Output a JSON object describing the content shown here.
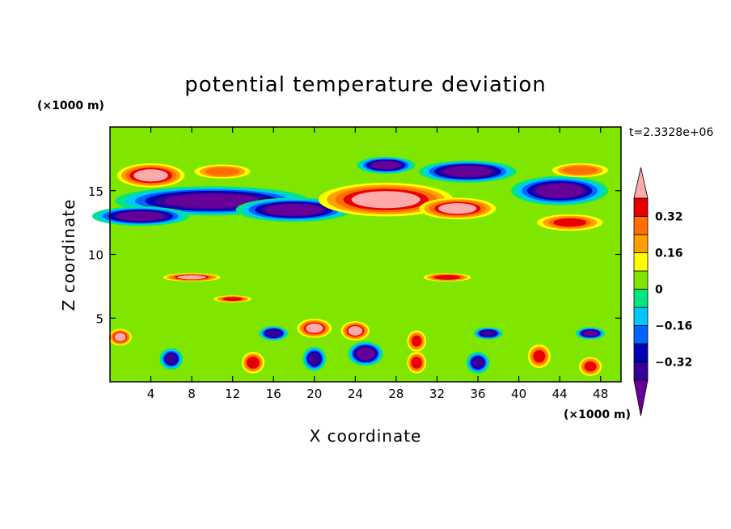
{
  "chart_data": {
    "type": "heatmap",
    "title": "potential temperature deviation",
    "time_label": "t=2.3328e+06",
    "xlabel": "X coordinate",
    "ylabel": "Z coordinate",
    "x_unit": "(×1000 m)",
    "y_unit": "(×1000 m)",
    "xlim": [
      0,
      50
    ],
    "ylim": [
      0,
      20
    ],
    "xticks": [
      4,
      8,
      12,
      16,
      20,
      24,
      28,
      32,
      36,
      40,
      44,
      48
    ],
    "yticks": [
      5,
      10,
      15
    ],
    "colorbar": {
      "levels": [
        -0.4,
        -0.32,
        -0.24,
        -0.16,
        -0.08,
        0,
        0.08,
        0.16,
        0.24,
        0.32,
        0.4
      ],
      "labels": [
        {
          "value": 0.32,
          "text": "0.32"
        },
        {
          "value": 0.16,
          "text": "0.16"
        },
        {
          "value": 0,
          "text": "0"
        },
        {
          "value": -0.16,
          "text": "−0.16"
        },
        {
          "value": -0.32,
          "text": "−0.32"
        }
      ],
      "colors_low_to_high": [
        "#660099",
        "#330099",
        "#0000b4",
        "#0064ff",
        "#00c8ff",
        "#00e680",
        "#80e600",
        "#ffff00",
        "#ffa000",
        "#ff6e00",
        "#e60000",
        "#ffaaaa"
      ],
      "extend": "both"
    },
    "background_value": 0.04,
    "field": [
      {
        "x": 4,
        "z": 16.2,
        "value": 0.45,
        "rx": 3.5,
        "rz": 1.0
      },
      {
        "x": 11,
        "z": 16.5,
        "value": 0.3,
        "rx": 3.0,
        "rz": 0.6
      },
      {
        "x": 10,
        "z": 14.2,
        "value": -0.45,
        "rx": 10.0,
        "rz": 1.2
      },
      {
        "x": 3,
        "z": 13.0,
        "value": -0.42,
        "rx": 5.0,
        "rz": 0.8
      },
      {
        "x": 18,
        "z": 13.5,
        "value": -0.42,
        "rx": 6.0,
        "rz": 1.0
      },
      {
        "x": 27,
        "z": 14.3,
        "value": 0.45,
        "rx": 7.0,
        "rz": 1.4
      },
      {
        "x": 34,
        "z": 13.6,
        "value": 0.42,
        "rx": 4.0,
        "rz": 0.9
      },
      {
        "x": 27,
        "z": 17.0,
        "value": -0.42,
        "rx": 3.0,
        "rz": 0.7
      },
      {
        "x": 35,
        "z": 16.5,
        "value": -0.45,
        "rx": 5.0,
        "rz": 0.9
      },
      {
        "x": 44,
        "z": 15.0,
        "value": -0.42,
        "rx": 5.0,
        "rz": 1.2
      },
      {
        "x": 45,
        "z": 12.5,
        "value": 0.32,
        "rx": 3.5,
        "rz": 0.7
      },
      {
        "x": 46,
        "z": 16.6,
        "value": 0.3,
        "rx": 3.0,
        "rz": 0.6
      },
      {
        "x": 8,
        "z": 8.2,
        "value": 0.42,
        "rx": 3.0,
        "rz": 0.35
      },
      {
        "x": 33,
        "z": 8.2,
        "value": 0.38,
        "rx": 2.5,
        "rz": 0.35
      },
      {
        "x": 12,
        "z": 6.5,
        "value": 0.35,
        "rx": 2.0,
        "rz": 0.3
      },
      {
        "x": 20,
        "z": 4.2,
        "value": 0.42,
        "rx": 1.8,
        "rz": 0.8
      },
      {
        "x": 24,
        "z": 4.0,
        "value": 0.42,
        "rx": 1.5,
        "rz": 0.8
      },
      {
        "x": 30,
        "z": 3.2,
        "value": 0.35,
        "rx": 1.0,
        "rz": 0.9
      },
      {
        "x": 16,
        "z": 3.8,
        "value": -0.4,
        "rx": 1.5,
        "rz": 0.6
      },
      {
        "x": 37,
        "z": 3.8,
        "value": -0.4,
        "rx": 1.5,
        "rz": 0.5
      },
      {
        "x": 47,
        "z": 3.8,
        "value": -0.42,
        "rx": 1.5,
        "rz": 0.5
      },
      {
        "x": 6,
        "z": 1.8,
        "value": -0.35,
        "rx": 1.2,
        "rz": 0.9
      },
      {
        "x": 14,
        "z": 1.5,
        "value": 0.38,
        "rx": 1.2,
        "rz": 0.9
      },
      {
        "x": 20,
        "z": 1.8,
        "value": -0.38,
        "rx": 1.2,
        "rz": 1.0
      },
      {
        "x": 25,
        "z": 2.2,
        "value": -0.45,
        "rx": 1.8,
        "rz": 1.0
      },
      {
        "x": 30,
        "z": 1.5,
        "value": 0.38,
        "rx": 1.0,
        "rz": 0.9
      },
      {
        "x": 36,
        "z": 1.5,
        "value": -0.35,
        "rx": 1.2,
        "rz": 0.9
      },
      {
        "x": 42,
        "z": 2.0,
        "value": 0.35,
        "rx": 1.2,
        "rz": 1.0
      },
      {
        "x": 47,
        "z": 1.2,
        "value": 0.35,
        "rx": 1.2,
        "rz": 0.8
      },
      {
        "x": 1,
        "z": 3.5,
        "value": 0.4,
        "rx": 1.2,
        "rz": 0.7
      }
    ]
  }
}
